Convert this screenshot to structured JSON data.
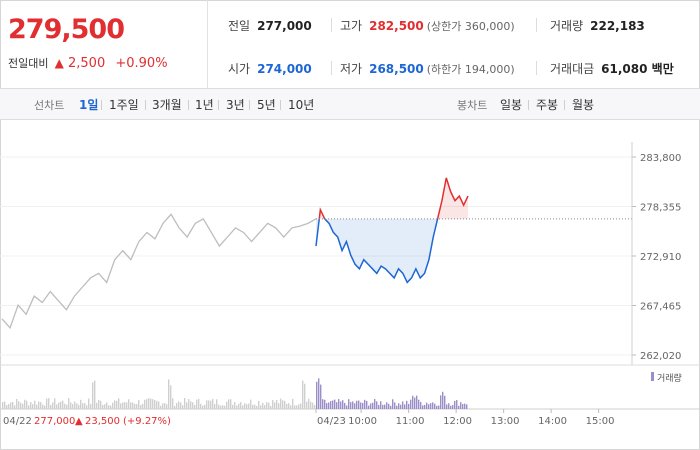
{
  "quote": {
    "price": "279,500",
    "change_label": "전일대비",
    "change_arrow": "▲",
    "change": "2,500",
    "change_pct": "+0.90%"
  },
  "info": {
    "prev_label": "전일",
    "prev": "277,000",
    "high_label": "고가",
    "high": "282,500",
    "upper_limit": "(상한가 360,000)",
    "volume_label": "거래량",
    "volume": "222,183",
    "open_label": "시가",
    "open": "274,000",
    "low_label": "저가",
    "low": "268,500",
    "lower_limit": "(하한가 194,000)",
    "amount_label": "거래대금",
    "amount": "61,080 백만"
  },
  "toolbar": {
    "line_label": "선차트",
    "line_items": [
      "1일",
      "1주일",
      "3개월",
      "1년",
      "3년",
      "5년",
      "10년"
    ],
    "active_line": "1일",
    "candle_label": "봉차트",
    "candle_items": [
      "일봉",
      "주봉",
      "월봉"
    ]
  },
  "colors": {
    "up": "#e12e30",
    "down": "#1c67d4",
    "prev_day": "#bdbdbd",
    "volume": "#9b8ec8"
  },
  "chart_data": {
    "type": "line",
    "y_ticks": [
      "283,800",
      "278,355",
      "272,910",
      "267,465",
      "262,020"
    ],
    "ylim": [
      262020,
      283800
    ],
    "reference_price": 277000,
    "x_labels": [
      "04/23",
      "10:00",
      "11:00",
      "12:00",
      "13:00",
      "14:00",
      "15:00"
    ],
    "series": [
      {
        "values": [
          266000,
          265000,
          267500,
          266500,
          268500,
          267800,
          269000,
          268000,
          267000,
          268500,
          269500,
          270500,
          271000,
          270000,
          272500,
          273500,
          272500,
          274500,
          275500,
          274800,
          276500,
          277500,
          276000,
          275000,
          276500,
          277000,
          275500,
          274000,
          275000,
          276000,
          275500,
          274500,
          275500,
          276500,
          276000,
          275000,
          276000,
          276200,
          276500,
          277000
        ]
      },
      {
        "values": [
          274000,
          278000,
          277000,
          276500,
          275500,
          275000,
          273500,
          274500,
          273000,
          272000,
          271500,
          272500,
          272000,
          271500,
          271000,
          271800,
          271500,
          271000,
          270500,
          271500,
          271000,
          270000,
          270500,
          271500,
          270500,
          271000,
          272500,
          275000,
          277000,
          279000,
          281500,
          280000,
          279000,
          279500,
          278500,
          279500
        ]
      }
    ],
    "volume_legend": "거래량",
    "prev_day_footer": {
      "date": "04/22",
      "close": "277,000",
      "arrow": "▲",
      "change": "23,500",
      "change_pct": "(+9.27%)"
    }
  }
}
